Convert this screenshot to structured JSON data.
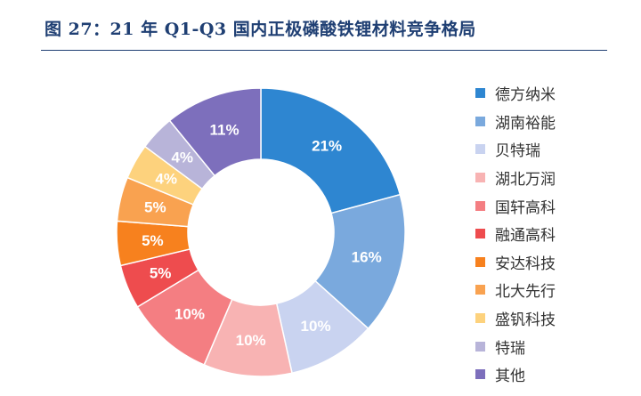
{
  "figure_title": "图 27：21 年 Q1-Q3 国内正极磷酸铁锂材料竞争格局",
  "chart_data": {
    "type": "donut",
    "legend_position": "right",
    "slices": [
      {
        "label": "德方纳米",
        "value": 21,
        "value_label": "21%",
        "color": "#2e86d1"
      },
      {
        "label": "湖南裕能",
        "value": 16,
        "value_label": "16%",
        "color": "#7aa9dd"
      },
      {
        "label": "贝特瑞",
        "value": 10,
        "value_label": "10%",
        "color": "#c9d3f0"
      },
      {
        "label": "湖北万润",
        "value": 10,
        "value_label": "10%",
        "color": "#f8b3b3"
      },
      {
        "label": "国轩高科",
        "value": 10,
        "value_label": "10%",
        "color": "#f47e82"
      },
      {
        "label": "融通高科",
        "value": 5,
        "value_label": "5%",
        "color": "#ee4c4e"
      },
      {
        "label": "安达科技",
        "value": 5,
        "value_label": "5%",
        "color": "#f7811e"
      },
      {
        "label": "北大先行",
        "value": 5,
        "value_label": "5%",
        "color": "#f9a250"
      },
      {
        "label": "盛钒科技",
        "value": 4,
        "value_label": "4%",
        "color": "#fdd27d"
      },
      {
        "label": "特瑞",
        "value": 4,
        "value_label": "4%",
        "color": "#b8b4d9"
      },
      {
        "label": "其他",
        "value": 11,
        "value_label": "11%",
        "color": "#7d6fbc"
      }
    ]
  }
}
